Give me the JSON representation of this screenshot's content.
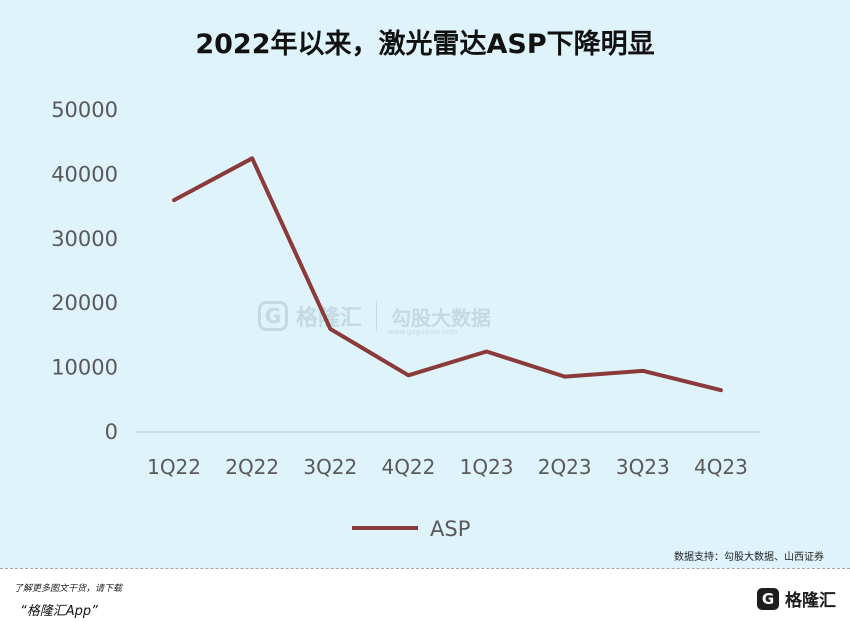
{
  "title": "2022年以来，激光雷达ASP下降明显",
  "source": "数据支持：勾股大数据、山西证券",
  "footer": {
    "note": "了解更多图文干货，请下载",
    "app": "“格隆汇App”",
    "brand_mark": "G",
    "brand_text": "格隆汇"
  },
  "watermark": {
    "logo": "G",
    "name": "格隆汇",
    "partner": "勾股大数据",
    "url": "www.gogudata.com"
  },
  "colors": {
    "background": "#dff3fb",
    "line": "#8b3a3a",
    "axis_text": "#595959"
  },
  "chart_data": {
    "type": "line",
    "title": "2022年以来，激光雷达ASP下降明显",
    "categories": [
      "1Q22",
      "2Q22",
      "3Q22",
      "4Q22",
      "1Q23",
      "2Q23",
      "3Q23",
      "4Q23"
    ],
    "series": [
      {
        "name": "ASP",
        "values": [
          36000,
          42500,
          16000,
          8800,
          12500,
          8600,
          9500,
          6500
        ]
      }
    ],
    "yticks": [
      0,
      10000,
      20000,
      30000,
      40000,
      50000
    ],
    "ylim": [
      0,
      50000
    ],
    "legend_position": "bottom",
    "grid": false
  }
}
